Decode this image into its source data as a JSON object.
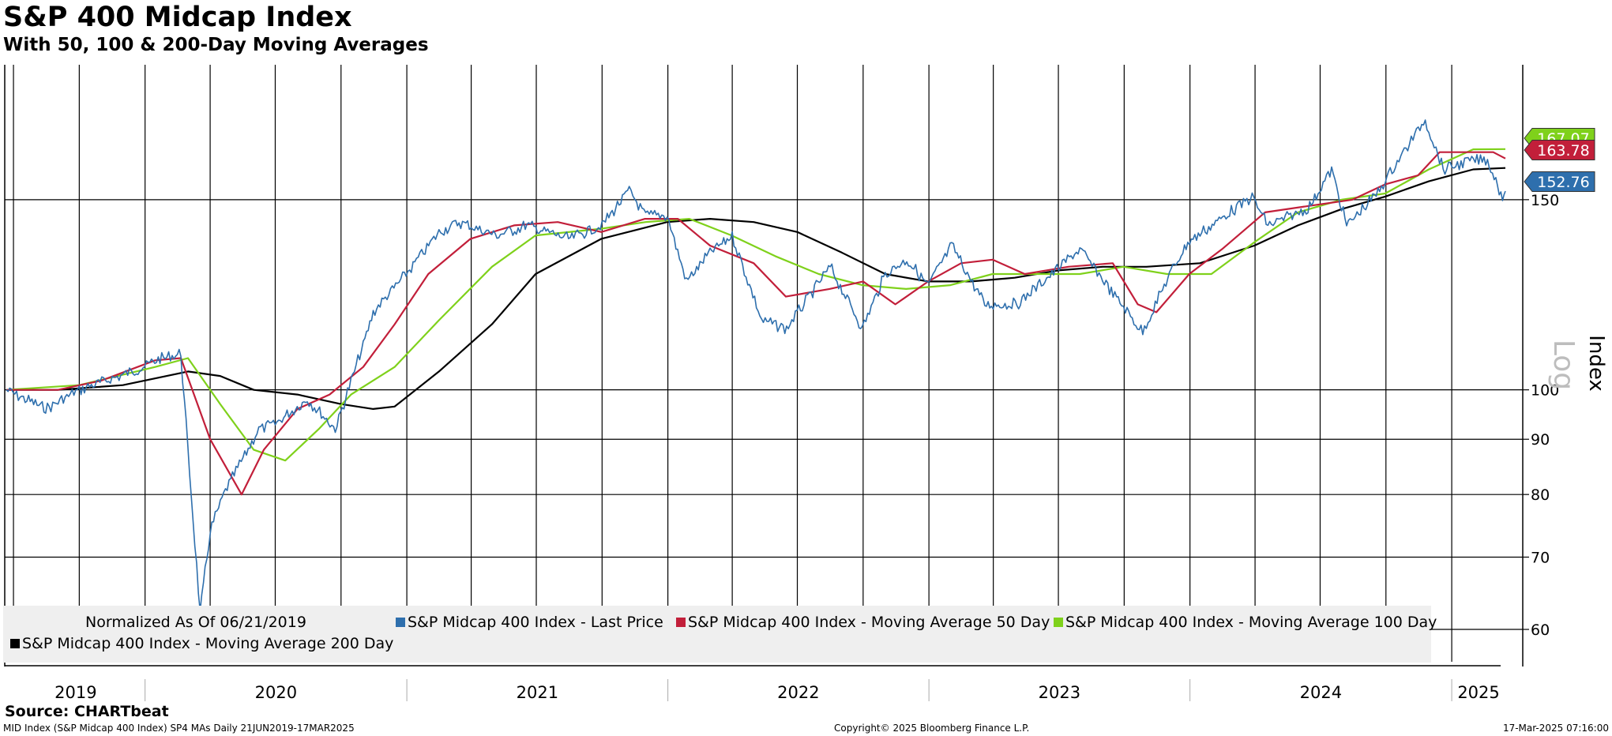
{
  "chart_title": "S&P 400 Midcap Index",
  "chart_subtitle": "With 50, 100 & 200-Day Moving Averages",
  "source": "Source: CHARTbeat",
  "footer": {
    "left": "MID Index (S&P Midcap 400 Index) SP4 MAs  Daily 21JUN2019-17MAR2025",
    "center": "Copyright© 2025 Bloomberg Finance L.P.",
    "right": "17-Mar-2025 07:16:00"
  },
  "colors": {
    "price": "#2e6fad",
    "ma50": "#c21f3a",
    "ma100": "#7fd11b",
    "ma200": "#000000",
    "legend_bg": "#efefef"
  },
  "legend": {
    "note": "Normalized As Of 06/21/2019",
    "items": [
      "S&P Midcap 400 Index - Last Price",
      "S&P Midcap 400 Index - Moving Average 50 Day",
      "S&P Midcap 400 Index - Moving Average 100 Day",
      "S&P Midcap 400 Index - Moving Average 200 Day"
    ]
  },
  "chart_data": {
    "type": "line",
    "title": "S&P 400 Midcap Index",
    "subtitle": "With 50, 100 & 200-Day Moving Averages",
    "ylabel": "Index",
    "scale_label": "Log",
    "log_scale": true,
    "grid": true,
    "legend_position": "bottom",
    "x_range": [
      "2019-06-21",
      "2025-03-17"
    ],
    "x_tick_labels": [
      "2019",
      "2020",
      "2021",
      "2022",
      "2023",
      "2024",
      "2025"
    ],
    "y_ticks": [
      60,
      70,
      80,
      90,
      100,
      150
    ],
    "y_range": [
      56,
      200
    ],
    "last_values": {
      "ma100": "167.07",
      "ma50": "163.78",
      "price": "152.76"
    },
    "series": [
      {
        "name": "S&P Midcap 400 Index - Last Price",
        "key": "price",
        "x": [
          "2019-06-21",
          "2019-08-15",
          "2019-10-01",
          "2019-12-15",
          "2020-01-17",
          "2020-02-20",
          "2020-03-18",
          "2020-04-01",
          "2020-04-20",
          "2020-06-08",
          "2020-07-01",
          "2020-08-15",
          "2020-09-23",
          "2020-11-01",
          "2020-11-15",
          "2020-12-31",
          "2021-02-15",
          "2021-03-15",
          "2021-05-07",
          "2021-06-18",
          "2021-08-15",
          "2021-10-01",
          "2021-11-08",
          "2021-12-01",
          "2021-12-31",
          "2022-01-27",
          "2022-03-01",
          "2022-04-01",
          "2022-05-12",
          "2022-06-16",
          "2022-08-16",
          "2022-09-30",
          "2022-11-01",
          "2022-12-01",
          "2022-12-31",
          "2023-02-02",
          "2023-03-20",
          "2023-05-04",
          "2023-07-31",
          "2023-10-27",
          "2023-12-01",
          "2023-12-29",
          "2024-03-28",
          "2024-04-19",
          "2024-06-14",
          "2024-07-17",
          "2024-08-07",
          "2024-09-15",
          "2024-11-25",
          "2024-12-20",
          "2025-01-24",
          "2025-02-20",
          "2025-03-13",
          "2025-03-17"
        ],
        "values": [
          100,
          96,
          100,
          104,
          106.5,
          108,
          62,
          74,
          80,
          92,
          93,
          98,
          92,
          110,
          118,
          128,
          140,
          143,
          139,
          142,
          138,
          142,
          153,
          145,
          145,
          126,
          134,
          139,
          116,
          114,
          130,
          114,
          128,
          132,
          125,
          136,
          120,
          120,
          135,
          113,
          127,
          137,
          151,
          142,
          147,
          160,
          142,
          151,
          178,
          160,
          163,
          163,
          151,
          152.76
        ]
      },
      {
        "name": "S&P Midcap 400 Index - Moving Average 50 Day",
        "key": "ma50",
        "x": [
          "2019-06-21",
          "2019-09-01",
          "2019-11-01",
          "2020-01-15",
          "2020-02-20",
          "2020-04-01",
          "2020-05-15",
          "2020-06-15",
          "2020-08-01",
          "2020-09-15",
          "2020-11-01",
          "2020-12-15",
          "2021-01-31",
          "2021-03-31",
          "2021-05-31",
          "2021-07-31",
          "2021-09-30",
          "2021-11-30",
          "2022-01-15",
          "2022-03-01",
          "2022-05-01",
          "2022-06-15",
          "2022-08-15",
          "2022-10-01",
          "2022-11-15",
          "2022-12-31",
          "2023-02-15",
          "2023-03-31",
          "2023-05-15",
          "2023-07-15",
          "2023-09-15",
          "2023-10-20",
          "2023-11-15",
          "2023-12-31",
          "2024-02-15",
          "2024-04-15",
          "2024-06-15",
          "2024-08-15",
          "2024-09-30",
          "2024-11-15",
          "2024-12-15",
          "2025-01-31",
          "2025-02-28",
          "2025-03-17"
        ],
        "values": [
          100,
          100,
          102,
          106.5,
          107,
          90,
          80,
          88,
          96,
          99,
          105,
          115,
          128,
          138,
          142,
          143,
          140,
          144,
          144,
          136,
          131,
          122,
          124,
          126,
          120,
          126,
          131,
          132,
          128,
          130,
          131,
          120,
          118,
          128,
          135,
          146,
          148,
          150,
          155,
          158,
          166,
          166,
          166,
          163.78
        ]
      },
      {
        "name": "S&P Midcap 400 Index - Moving Average 100 Day",
        "key": "ma100",
        "x": [
          "2019-06-21",
          "2019-10-01",
          "2020-01-15",
          "2020-03-01",
          "2020-04-15",
          "2020-06-01",
          "2020-07-15",
          "2020-08-31",
          "2020-10-15",
          "2020-12-15",
          "2021-02-15",
          "2021-04-30",
          "2021-06-30",
          "2021-09-30",
          "2021-12-01",
          "2022-01-31",
          "2022-03-31",
          "2022-05-31",
          "2022-07-31",
          "2022-09-30",
          "2022-11-30",
          "2023-01-31",
          "2023-03-31",
          "2023-05-31",
          "2023-07-31",
          "2023-09-30",
          "2023-11-30",
          "2024-01-31",
          "2024-03-31",
          "2024-05-31",
          "2024-07-31",
          "2024-09-30",
          "2024-11-30",
          "2025-01-31",
          "2025-03-17"
        ],
        "values": [
          100,
          101,
          105,
          107,
          97,
          88,
          86,
          92,
          99,
          105,
          116,
          130,
          139,
          141,
          143,
          144,
          139,
          133,
          128,
          125,
          124,
          125,
          128,
          128,
          128,
          130,
          128,
          128,
          137,
          146,
          150,
          152,
          160,
          167,
          167.07
        ]
      },
      {
        "name": "S&P Midcap 400 Index - Moving Average 200 Day",
        "key": "ma200",
        "x": [
          "2019-06-21",
          "2019-09-01",
          "2019-12-01",
          "2020-03-01",
          "2020-04-15",
          "2020-06-01",
          "2020-08-01",
          "2020-10-01",
          "2020-11-15",
          "2020-12-15",
          "2021-02-15",
          "2021-04-30",
          "2021-06-30",
          "2021-09-30",
          "2021-12-31",
          "2022-03-01",
          "2022-05-01",
          "2022-07-01",
          "2022-09-01",
          "2022-11-01",
          "2022-12-31",
          "2023-03-01",
          "2023-05-01",
          "2023-07-01",
          "2023-09-01",
          "2023-11-01",
          "2024-01-15",
          "2024-03-31",
          "2024-05-31",
          "2024-07-31",
          "2024-09-30",
          "2024-11-30",
          "2025-01-31",
          "2025-03-17"
        ],
        "values": [
          100,
          100,
          101,
          104,
          103,
          100,
          99,
          97,
          96,
          96.5,
          104,
          115,
          128,
          138,
          143,
          144,
          143,
          140,
          134,
          128,
          126,
          126,
          127,
          129,
          130,
          130,
          131,
          136,
          142,
          147,
          151,
          156,
          160,
          160.5
        ]
      }
    ]
  }
}
